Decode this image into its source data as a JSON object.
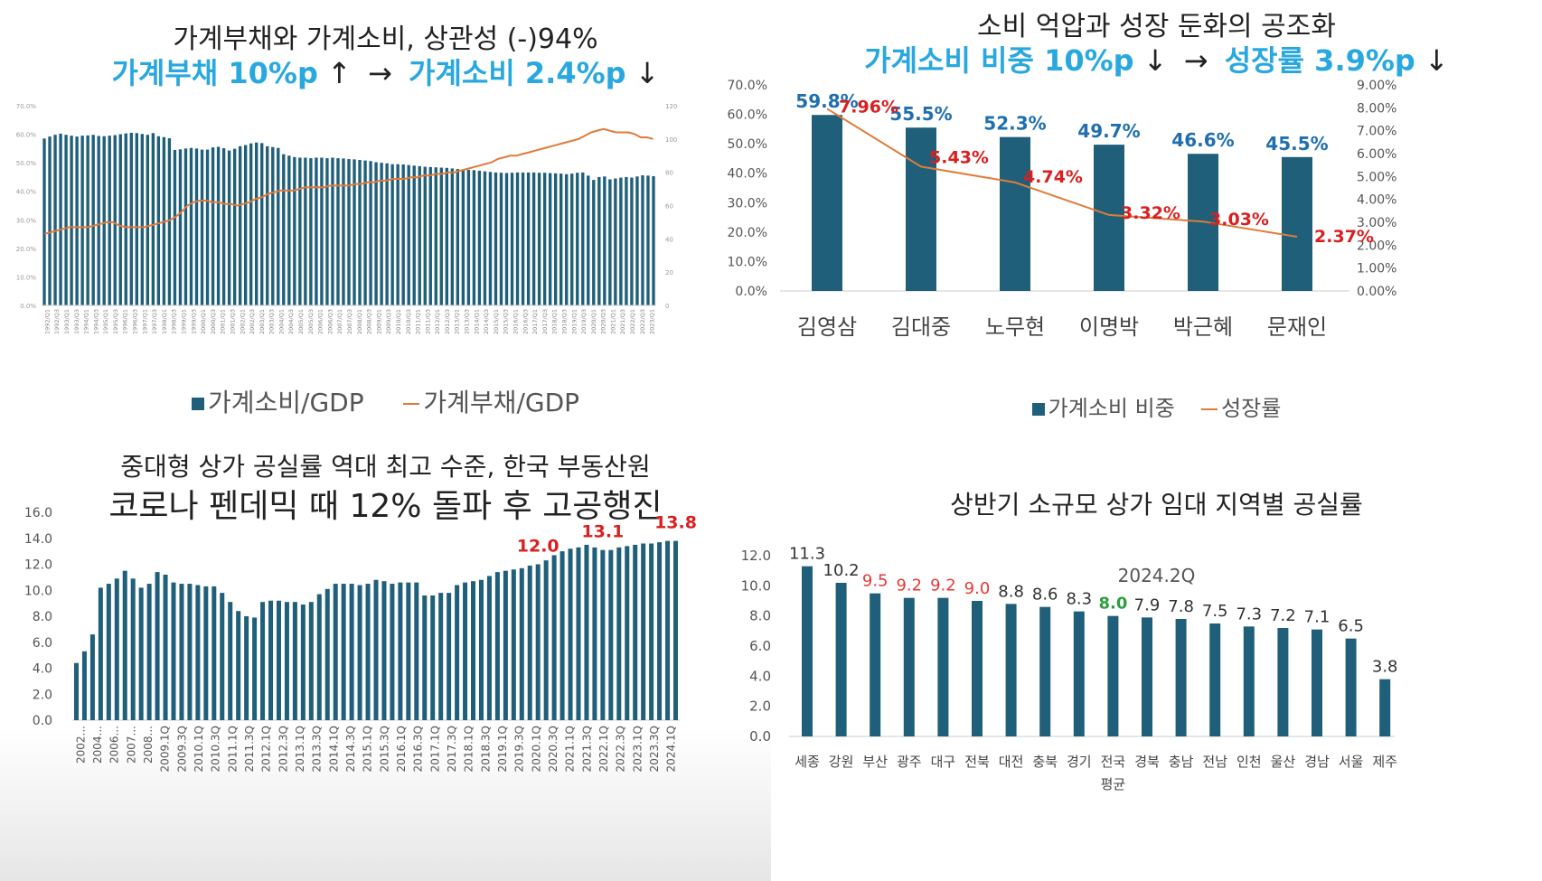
{
  "panel1": {
    "title_line1": "가계부채와 가계소비, 상관성 (-)94%",
    "subtitle_a": "가계부채 10%p",
    "subtitle_a_arrow": "↑",
    "subtitle_mid_arrow": "→",
    "subtitle_b": "가계소비 2.4%p",
    "subtitle_b_arrow": "↓",
    "legend_bar": "가계소비/GDP",
    "legend_line": "가계부채/GDP"
  },
  "panel2": {
    "title_line1": "소비 억압과 성장 둔화의 공조화",
    "subtitle_a": "가계소비 비중 10%p",
    "subtitle_a_arrow": "↓",
    "subtitle_mid_arrow": "→",
    "subtitle_b": "성장률 3.9%p",
    "subtitle_b_arrow": "↓",
    "legend_bar": "가계소비 비중",
    "legend_line": "성장률"
  },
  "panel3": {
    "title_line1": "중대형 상가 공실률 역대 최고 수준, 한국 부동산원",
    "title_line2": "코로나 펜데믹 때 12% 돌파 후 고공행진"
  },
  "panel4": {
    "title_line1": "상반기 소규모 상가 임대 지역별 공실률",
    "chart_title": "2024.2Q"
  },
  "chart_data": [
    {
      "type": "bar",
      "id": "household-consumption-debt",
      "series": [
        {
          "name": "가계소비/GDP",
          "kind": "bar",
          "axis": "left",
          "color": "#1f5f7a",
          "values": [
            58.5,
            59.2,
            59.8,
            60.2,
            59.8,
            59.5,
            59.2,
            59.5,
            59.6,
            59.8,
            59.4,
            59.3,
            59.5,
            59.7,
            60.0,
            60.3,
            60.5,
            60.4,
            60.1,
            59.8,
            60.4,
            59.3,
            59.0,
            58.6,
            54.5,
            54.7,
            55.0,
            55.2,
            55.0,
            54.6,
            54.6,
            55.4,
            55.6,
            55.1,
            54.3,
            54.9,
            55.8,
            56.2,
            56.8,
            57.1,
            56.9,
            55.8,
            55.5,
            55.2,
            53.0,
            52.5,
            52.0,
            51.8,
            51.8,
            51.6,
            51.8,
            51.8,
            51.6,
            51.8,
            51.6,
            51.5,
            51.3,
            51.2,
            51.0,
            50.8,
            50.6,
            50.2,
            50.0,
            49.8,
            49.5,
            49.5,
            49.4,
            49.2,
            49.0,
            48.8,
            48.6,
            48.5,
            48.4,
            48.3,
            48.2,
            48.0,
            47.8,
            47.6,
            47.5,
            47.4,
            47.2,
            47.0,
            46.8,
            46.6,
            46.5,
            46.4,
            46.5,
            46.6,
            46.6,
            46.6,
            46.6,
            46.5,
            46.5,
            46.4,
            46.3,
            46.2,
            46.0,
            46.2,
            46.5,
            46.6,
            45.5,
            44.0,
            45.0,
            45.2,
            44.2,
            44.5,
            44.8,
            45.0,
            44.8,
            45.2,
            45.6,
            45.5,
            45.3
          ]
        },
        {
          "name": "가계부채/GDP",
          "kind": "line",
          "axis": "right",
          "color": "#e07b39",
          "values": [
            43,
            44,
            45,
            46,
            47,
            47,
            47,
            47,
            48,
            49,
            50,
            50,
            48,
            47,
            47,
            47,
            47,
            48,
            49,
            50,
            51,
            53,
            56,
            60,
            62,
            63,
            63,
            62,
            62,
            61,
            61,
            60,
            61,
            62,
            64,
            65,
            67,
            68,
            69,
            69,
            69,
            70,
            71,
            71,
            71,
            71,
            72,
            72,
            72,
            72,
            73,
            73,
            74,
            74,
            75,
            75,
            76,
            76,
            76,
            77,
            77,
            78,
            78,
            79,
            79,
            80,
            80,
            81,
            82,
            83,
            84,
            85,
            86,
            88,
            89,
            90,
            90,
            91,
            92,
            93,
            94,
            95,
            96,
            97,
            98,
            99,
            100,
            102,
            104,
            105,
            106,
            105,
            104,
            104,
            104,
            103,
            101,
            101,
            100
          ]
        }
      ],
      "x_tick_labels": [
        "1992/Q1",
        "1992/Q3",
        "1993/Q1",
        "1993/Q3",
        "1994/Q1",
        "1994/Q3",
        "1995/Q1",
        "1995/Q3",
        "1996/Q1",
        "1996/Q3",
        "1997/Q1",
        "1997/Q3",
        "1998/Q1",
        "1998/Q3",
        "1999/Q1",
        "1999/Q3",
        "2000/Q1",
        "2000/Q3",
        "2001/Q1",
        "2001/Q3",
        "2002/Q1",
        "2002/Q3",
        "2003/Q1",
        "2003/Q3",
        "2004/Q1",
        "2004/Q3",
        "2005/Q1",
        "2005/Q3",
        "2006/Q1",
        "2006/Q3",
        "2007/Q1",
        "2007/Q3",
        "2008/Q1",
        "2008/Q3",
        "2009/Q1",
        "2009/Q3",
        "2010/Q1",
        "2010/Q3",
        "2011/Q1",
        "2011/Q3",
        "2012/Q1",
        "2012/Q3",
        "2013/Q1",
        "2013/Q3",
        "2014/Q1",
        "2014/Q3",
        "2015/Q1",
        "2015/Q3",
        "2016/Q1",
        "2016/Q3",
        "2017/Q1",
        "2017/Q3",
        "2018/Q1",
        "2018/Q3",
        "2019/Q1",
        "2019/Q3",
        "2020/Q1",
        "2020/Q3",
        "2021/Q1",
        "2021/Q3",
        "2022/Q1",
        "2022/Q3",
        "2023/Q1"
      ],
      "y_left_ticks": [
        "0.0%",
        "10.0%",
        "20.0%",
        "30.0%",
        "40.0%",
        "50.0%",
        "60.0%",
        "70.0%"
      ],
      "y_left_range": [
        0,
        70
      ],
      "y_right_ticks": [
        "0",
        "20",
        "40",
        "60",
        "80",
        "100",
        "120"
      ],
      "y_right_range": [
        0,
        120
      ]
    },
    {
      "type": "bar",
      "id": "consumption-vs-growth-by-president",
      "categories": [
        "김영삼",
        "김대중",
        "노무현",
        "이명박",
        "박근혜",
        "문재인"
      ],
      "series": [
        {
          "name": "가계소비 비중",
          "kind": "bar",
          "axis": "left",
          "color": "#1f5f7a",
          "values": [
            59.8,
            55.5,
            52.3,
            49.7,
            46.6,
            45.5
          ],
          "labels": [
            "59.8%",
            "55.5%",
            "52.3%",
            "49.7%",
            "46.6%",
            "45.5%"
          ]
        },
        {
          "name": "성장률",
          "kind": "line",
          "axis": "right",
          "color": "#e07b39",
          "values": [
            7.96,
            5.43,
            4.74,
            3.32,
            3.03,
            2.37
          ],
          "labels": [
            "7.96%",
            "5.43%",
            "4.74%",
            "3.32%",
            "3.03%",
            "2.37%"
          ]
        }
      ],
      "y_left_ticks": [
        "0.0%",
        "10.0%",
        "20.0%",
        "30.0%",
        "40.0%",
        "50.0%",
        "60.0%",
        "70.0%"
      ],
      "y_left_range": [
        0,
        70
      ],
      "y_right_ticks": [
        "0.00%",
        "1.00%",
        "2.00%",
        "3.00%",
        "4.00%",
        "5.00%",
        "6.00%",
        "7.00%",
        "8.00%",
        "9.00%"
      ],
      "y_right_range": [
        0,
        9
      ]
    },
    {
      "type": "bar",
      "id": "mid-large-store-vacancy",
      "series": [
        {
          "name": "",
          "color": "#1f5f7a",
          "values": [
            4.4,
            5.3,
            6.6,
            10.2,
            10.5,
            10.9,
            11.5,
            10.9,
            10.2,
            10.5,
            11.4,
            11.2,
            10.6,
            10.5,
            10.5,
            10.4,
            10.3,
            10.3,
            9.8,
            9.1,
            8.4,
            8.0,
            7.9,
            9.1,
            9.2,
            9.2,
            9.1,
            9.1,
            8.9,
            9.1,
            9.7,
            10.1,
            10.5,
            10.5,
            10.5,
            10.4,
            10.5,
            10.8,
            10.7,
            10.5,
            10.6,
            10.6,
            10.6,
            9.6,
            9.6,
            9.8,
            9.8,
            10.4,
            10.6,
            10.7,
            10.8,
            11.1,
            11.4,
            11.5,
            11.6,
            11.7,
            11.9,
            12.0,
            12.3,
            12.7,
            13.0,
            13.2,
            13.3,
            13.5,
            13.3,
            13.1,
            13.1,
            13.3,
            13.4,
            13.5,
            13.6,
            13.6,
            13.7,
            13.8,
            13.8
          ]
        }
      ],
      "highlight_labels": [
        {
          "index": 57,
          "text": "12.0"
        },
        {
          "index": 65,
          "text": "13.1"
        },
        {
          "index": 74,
          "text": "13.8"
        }
      ],
      "x_tick_labels": [
        "2002...",
        "2004...",
        "2006...",
        "2007...",
        "2008...",
        "2009.1Q",
        "2009.3Q",
        "2010.1Q",
        "2010.3Q",
        "2011.1Q",
        "2011.3Q",
        "2012.1Q",
        "2012.3Q",
        "2013.1Q",
        "2013.3Q",
        "2014.1Q",
        "2014.3Q",
        "2015.1Q",
        "2015.3Q",
        "2016.1Q",
        "2016.3Q",
        "2017.1Q",
        "2017.3Q",
        "2018.1Q",
        "2018.3Q",
        "2019.1Q",
        "2019.3Q",
        "2020.1Q",
        "2020.3Q",
        "2021.1Q",
        "2021.3Q",
        "2022.1Q",
        "2022.3Q",
        "2023.1Q",
        "2023.3Q",
        "2024.1Q"
      ],
      "y_ticks": [
        "0.0",
        "2.0",
        "4.0",
        "6.0",
        "8.0",
        "10.0",
        "12.0",
        "14.0",
        "16.0"
      ],
      "y_range": [
        0,
        16
      ]
    },
    {
      "type": "bar",
      "id": "small-store-vacancy-by-region",
      "title": "2024.2Q",
      "categories": [
        "세종",
        "강원",
        "부산",
        "광주",
        "대구",
        "전북",
        "대전",
        "충북",
        "경기",
        "전국",
        "경북",
        "충남",
        "전남",
        "인천",
        "울산",
        "경남",
        "서울",
        "제주"
      ],
      "category_sublabel": {
        "index": 9,
        "text": "평균"
      },
      "values": [
        11.3,
        10.2,
        9.5,
        9.2,
        9.2,
        9.0,
        8.8,
        8.6,
        8.3,
        8.0,
        7.9,
        7.8,
        7.5,
        7.3,
        7.2,
        7.1,
        6.5,
        3.8
      ],
      "labels": [
        "11.3",
        "10.2",
        "9.5",
        "9.2",
        "9.2",
        "9.0",
        "8.8",
        "8.6",
        "8.3",
        "8.0",
        "7.9",
        "7.8",
        "7.5",
        "7.3",
        "7.2",
        "7.1",
        "6.5",
        "3.8"
      ],
      "label_colors": [
        "#333333",
        "#333333",
        "#e53935",
        "#e53935",
        "#e53935",
        "#e53935",
        "#333333",
        "#333333",
        "#333333",
        "#2e9e3e",
        "#333333",
        "#333333",
        "#333333",
        "#333333",
        "#333333",
        "#333333",
        "#333333",
        "#333333"
      ],
      "bar_color": "#1f5f7a",
      "y_ticks": [
        "0.0",
        "2.0",
        "4.0",
        "6.0",
        "8.0",
        "10.0",
        "12.0"
      ],
      "y_range": [
        0,
        12
      ]
    }
  ]
}
